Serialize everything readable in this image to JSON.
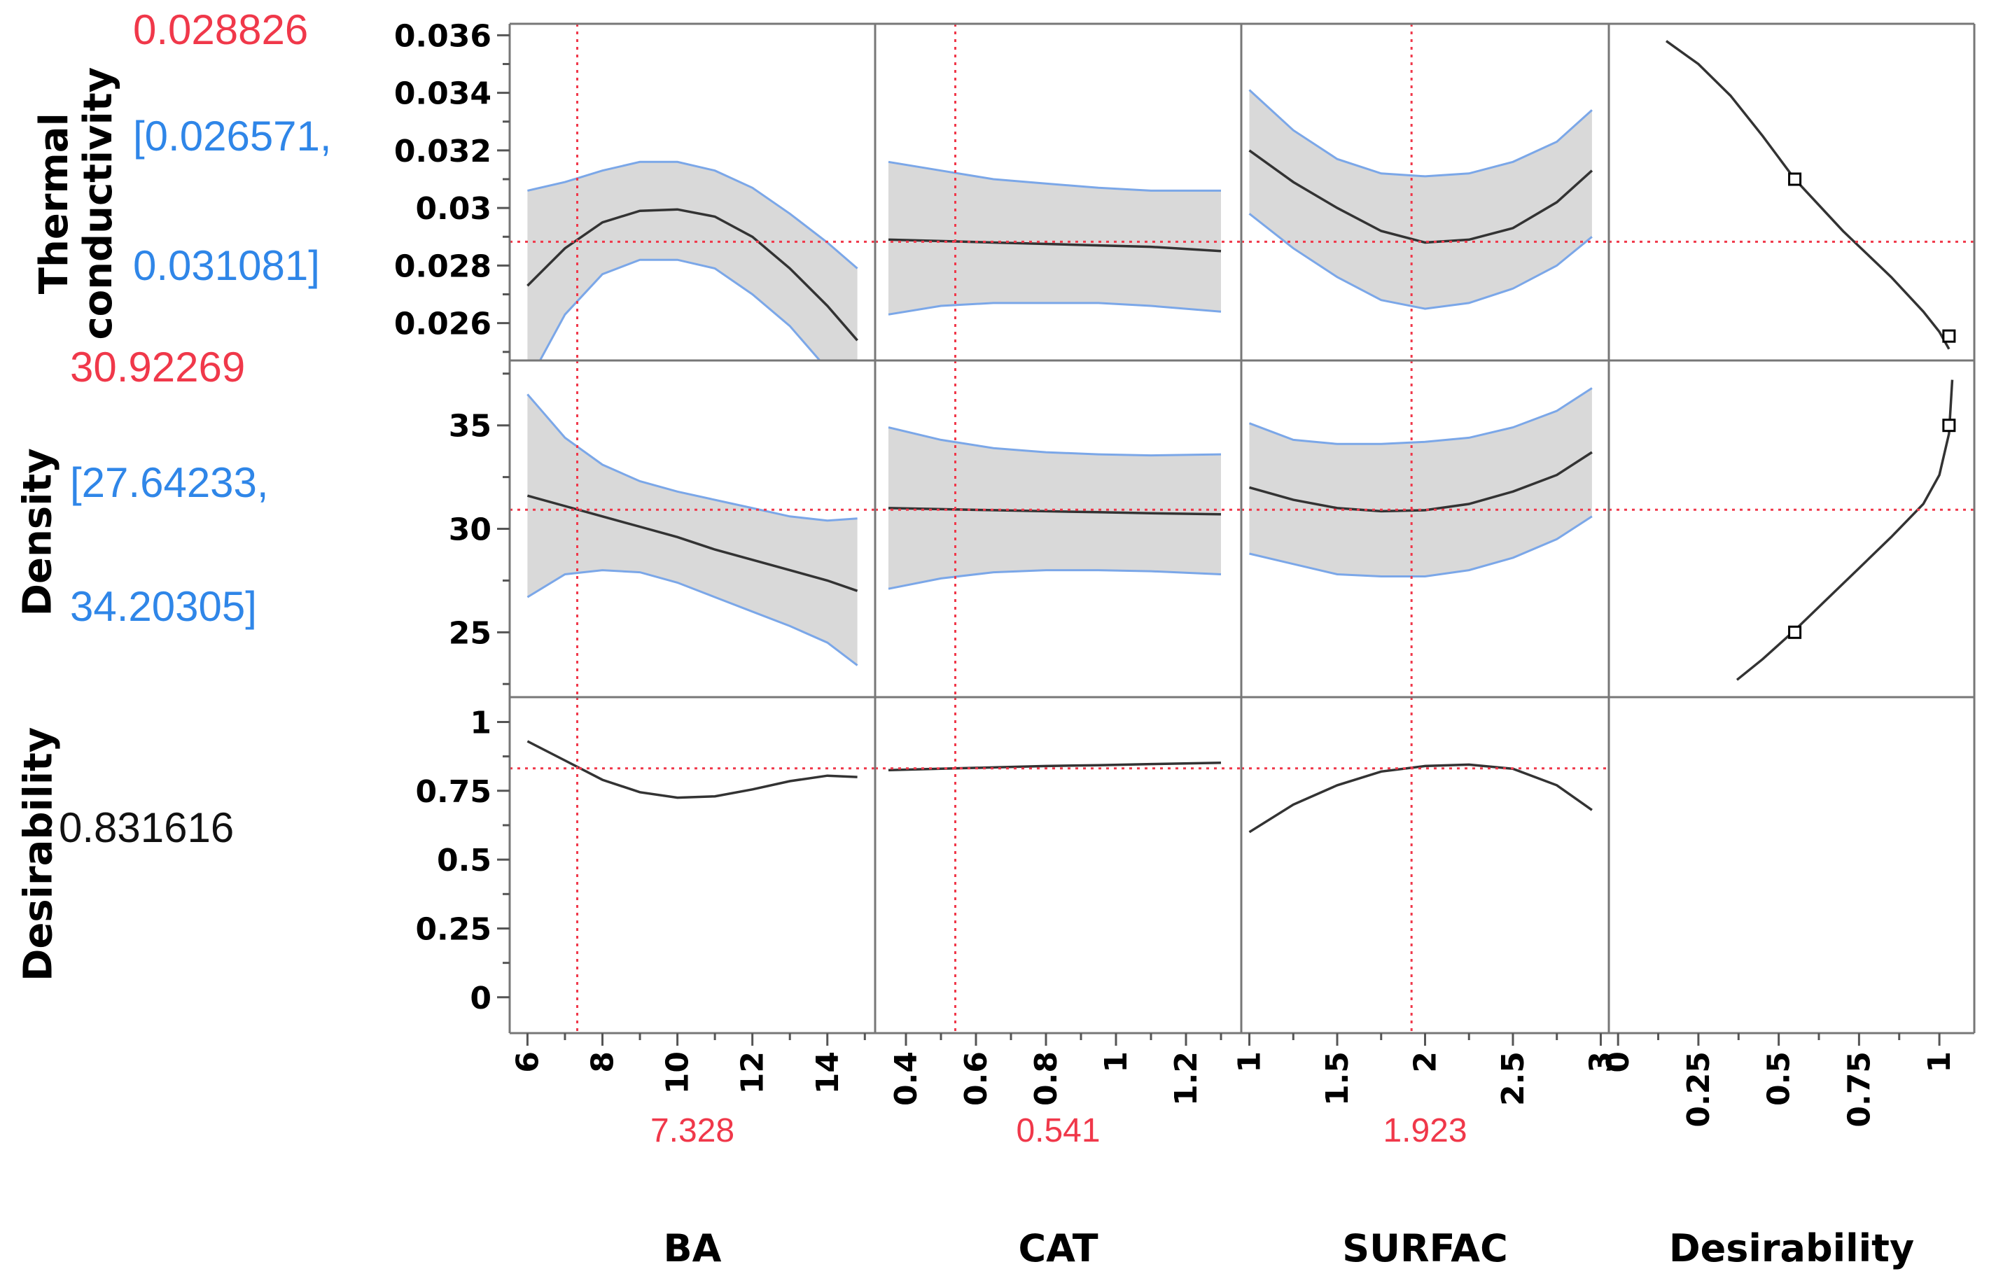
{
  "chart_data": {
    "type": "line",
    "colors": {
      "curve": "#333333",
      "ci_line": "#7ba7e8",
      "ci_fill": "#d9d9d9",
      "crosshair": "#f0384a",
      "frame": "#777777"
    },
    "rows": [
      {
        "key": "thermal",
        "label_lines": [
          "Thermal",
          "conductivity"
        ],
        "value": "0.028826",
        "interval_lines": [
          "[0.026571,",
          "0.031081]"
        ],
        "ylim": [
          0.0248,
          0.0363
        ],
        "yticks": [
          0.026,
          0.028,
          0.03,
          0.032,
          0.034,
          0.036
        ],
        "ytick_labels": [
          "0.026",
          "0.028",
          "0.03",
          "0.032",
          "0.034",
          "0.036"
        ],
        "hline": 0.028826
      },
      {
        "key": "density",
        "label_lines": [
          "Density"
        ],
        "value": "30.92269",
        "interval_lines": [
          "[27.64233,",
          "34.20305]"
        ],
        "ylim": [
          22,
          38
        ],
        "yticks": [
          25,
          30,
          35
        ],
        "ytick_labels": [
          "25",
          "30",
          "35"
        ],
        "hline": 30.92269
      },
      {
        "key": "desirability",
        "label_lines": [
          "Desirability"
        ],
        "value": "0.831616",
        "interval_lines": [],
        "ylim": [
          -0.12,
          1.08
        ],
        "yticks": [
          0,
          0.25,
          0.5,
          0.75,
          1
        ],
        "ytick_labels": [
          "0",
          "0.25",
          "0.5",
          "0.75",
          "1"
        ],
        "hline": 0.831616
      }
    ],
    "factors": [
      {
        "name": "BA",
        "current": "7.328",
        "vline": 7.328,
        "xlim": [
          5.6,
          15.2
        ],
        "xticks": [
          6,
          8,
          10,
          12,
          14
        ],
        "xtick_labels": [
          "6",
          "8",
          "10",
          "12",
          "14"
        ],
        "curves": {
          "thermal": {
            "x": [
              6,
              7,
              8,
              9,
              10,
              11,
              12,
              13,
              14,
              14.8
            ],
            "y": [
              0.0273,
              0.0286,
              0.0295,
              0.0299,
              0.02995,
              0.0297,
              0.029,
              0.0279,
              0.0266,
              0.0254
            ],
            "upper": [
              0.0306,
              0.0309,
              0.0313,
              0.0316,
              0.0316,
              0.0313,
              0.0307,
              0.0298,
              0.0288,
              0.0279
            ],
            "lower": [
              0.0239,
              0.0263,
              0.0277,
              0.0282,
              0.0282,
              0.0279,
              0.027,
              0.0259,
              0.0244,
              0.0229
            ]
          },
          "density": {
            "x": [
              6,
              7,
              8,
              9,
              10,
              11,
              12,
              13,
              14,
              14.8
            ],
            "y": [
              31.6,
              31.1,
              30.6,
              30.1,
              29.6,
              29.0,
              28.5,
              28.0,
              27.5,
              27.0
            ],
            "upper": [
              36.5,
              34.4,
              33.1,
              32.3,
              31.8,
              31.4,
              31.0,
              30.6,
              30.4,
              30.5
            ],
            "lower": [
              26.7,
              27.8,
              28.0,
              27.9,
              27.4,
              26.7,
              26.0,
              25.3,
              24.5,
              23.4
            ]
          },
          "desirability": {
            "x": [
              6,
              7,
              8,
              9,
              10,
              11,
              12,
              13,
              14,
              14.8
            ],
            "y": [
              0.93,
              0.86,
              0.79,
              0.745,
              0.725,
              0.73,
              0.755,
              0.785,
              0.805,
              0.8
            ]
          }
        }
      },
      {
        "name": "CAT",
        "current": "0.541",
        "vline": 0.541,
        "xlim": [
          0.32,
          1.35
        ],
        "xticks": [
          0.4,
          0.6,
          0.8,
          1,
          1.2
        ],
        "xtick_labels": [
          "0.4",
          "0.6",
          "0.8",
          "1",
          "1.2"
        ],
        "curves": {
          "thermal": {
            "x": [
              0.35,
              0.5,
              0.65,
              0.8,
              0.95,
              1.1,
              1.3
            ],
            "y": [
              0.0289,
              0.02885,
              0.0288,
              0.02875,
              0.0287,
              0.02865,
              0.0285
            ],
            "upper": [
              0.0316,
              0.0313,
              0.031,
              0.03085,
              0.0307,
              0.0306,
              0.0306
            ],
            "lower": [
              0.0263,
              0.0266,
              0.0267,
              0.0267,
              0.0267,
              0.0266,
              0.0264
            ]
          },
          "density": {
            "x": [
              0.35,
              0.5,
              0.65,
              0.8,
              0.95,
              1.1,
              1.3
            ],
            "y": [
              31.0,
              30.95,
              30.9,
              30.85,
              30.8,
              30.75,
              30.7
            ],
            "upper": [
              34.9,
              34.3,
              33.9,
              33.7,
              33.6,
              33.55,
              33.6
            ],
            "lower": [
              27.1,
              27.6,
              27.9,
              28.0,
              28.0,
              27.95,
              27.8
            ]
          },
          "desirability": {
            "x": [
              0.35,
              0.5,
              0.65,
              0.8,
              0.95,
              1.1,
              1.3
            ],
            "y": [
              0.825,
              0.83,
              0.835,
              0.84,
              0.843,
              0.847,
              0.852
            ]
          }
        }
      },
      {
        "name": "SURFAC",
        "current": "1.923",
        "vline": 1.923,
        "xlim": [
          0.97,
          3.03
        ],
        "xticks": [
          1,
          1.5,
          2,
          2.5,
          3
        ],
        "xtick_labels": [
          "1",
          "1.5",
          "2",
          "2.5",
          "3"
        ],
        "curves": {
          "thermal": {
            "x": [
              1.0,
              1.25,
              1.5,
              1.75,
              2.0,
              2.25,
              2.5,
              2.75,
              2.95
            ],
            "y": [
              0.032,
              0.0309,
              0.03,
              0.0292,
              0.0288,
              0.0289,
              0.0293,
              0.0302,
              0.0313
            ],
            "upper": [
              0.0341,
              0.0327,
              0.0317,
              0.0312,
              0.0311,
              0.0312,
              0.0316,
              0.0323,
              0.0334
            ],
            "lower": [
              0.0298,
              0.0286,
              0.0276,
              0.0268,
              0.0265,
              0.0267,
              0.0272,
              0.028,
              0.029
            ]
          },
          "density": {
            "x": [
              1.0,
              1.25,
              1.5,
              1.75,
              2.0,
              2.25,
              2.5,
              2.75,
              2.95
            ],
            "y": [
              32.0,
              31.4,
              31.0,
              30.85,
              30.9,
              31.2,
              31.8,
              32.6,
              33.7
            ],
            "upper": [
              35.1,
              34.3,
              34.1,
              34.1,
              34.2,
              34.4,
              34.9,
              35.7,
              36.8
            ],
            "lower": [
              28.8,
              28.3,
              27.8,
              27.7,
              27.7,
              28.0,
              28.6,
              29.5,
              30.6
            ]
          },
          "desirability": {
            "x": [
              1.0,
              1.25,
              1.5,
              1.75,
              2.0,
              2.25,
              2.5,
              2.75,
              2.95
            ],
            "y": [
              0.6,
              0.7,
              0.77,
              0.82,
              0.84,
              0.845,
              0.83,
              0.77,
              0.68
            ]
          }
        }
      },
      {
        "name": "Desirability",
        "current": "",
        "vline": null,
        "xlim": [
          -0.02,
          1.1
        ],
        "xticks": [
          0,
          0.25,
          0.5,
          0.75,
          1
        ],
        "xtick_labels": [
          "0",
          "0.25",
          "0.5",
          "0.75",
          "1"
        ],
        "curves": {
          "thermal": {
            "x": [
              0.15,
              0.25,
              0.35,
              0.45,
              0.55,
              0.7,
              0.85,
              0.95,
              1.0,
              1.03
            ],
            "y": [
              0.0358,
              0.035,
              0.0339,
              0.0325,
              0.031,
              0.0292,
              0.0276,
              0.0264,
              0.0257,
              0.0251
            ]
          },
          "density": {
            "x": [
              0.37,
              0.45,
              0.55,
              0.65,
              0.75,
              0.85,
              0.95,
              1.0,
              1.03,
              1.04
            ],
            "y": [
              22.7,
              23.7,
              25.1,
              26.6,
              28.1,
              29.6,
              31.2,
              32.6,
              34.6,
              37.2
            ]
          },
          "markers": {
            "thermal": [
              {
                "x": 0.55,
                "y": 0.031
              },
              {
                "x": 1.03,
                "y": 0.02555
              }
            ],
            "density": [
              {
                "x": 0.55,
                "y": 25
              },
              {
                "x": 1.03,
                "y": 35
              }
            ]
          }
        }
      }
    ]
  }
}
